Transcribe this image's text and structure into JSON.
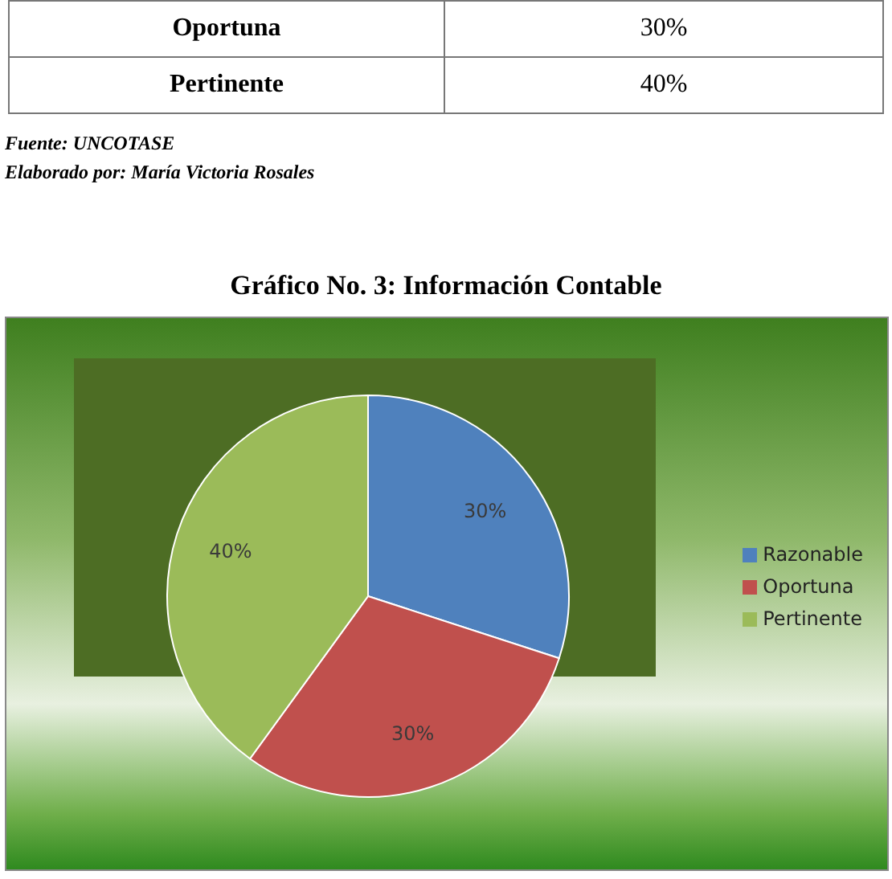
{
  "chart_data": {
    "type": "pie",
    "title": "Gráfico No.  3: Información Contable",
    "categories": [
      "Razonable",
      "Oportuna",
      "Pertinente"
    ],
    "values": [
      30,
      30,
      40
    ],
    "colors": [
      "#4f81bd",
      "#c0504d",
      "#9bbb59"
    ],
    "value_labels": [
      "30%",
      "30%",
      "40%"
    ],
    "legend": "right",
    "annotations": [
      "Oportuna",
      "30%",
      "Pertinente",
      "40%",
      "Fuente: UNCOTASE",
      "Elaborado por: María Victoria Rosales"
    ]
  }
}
